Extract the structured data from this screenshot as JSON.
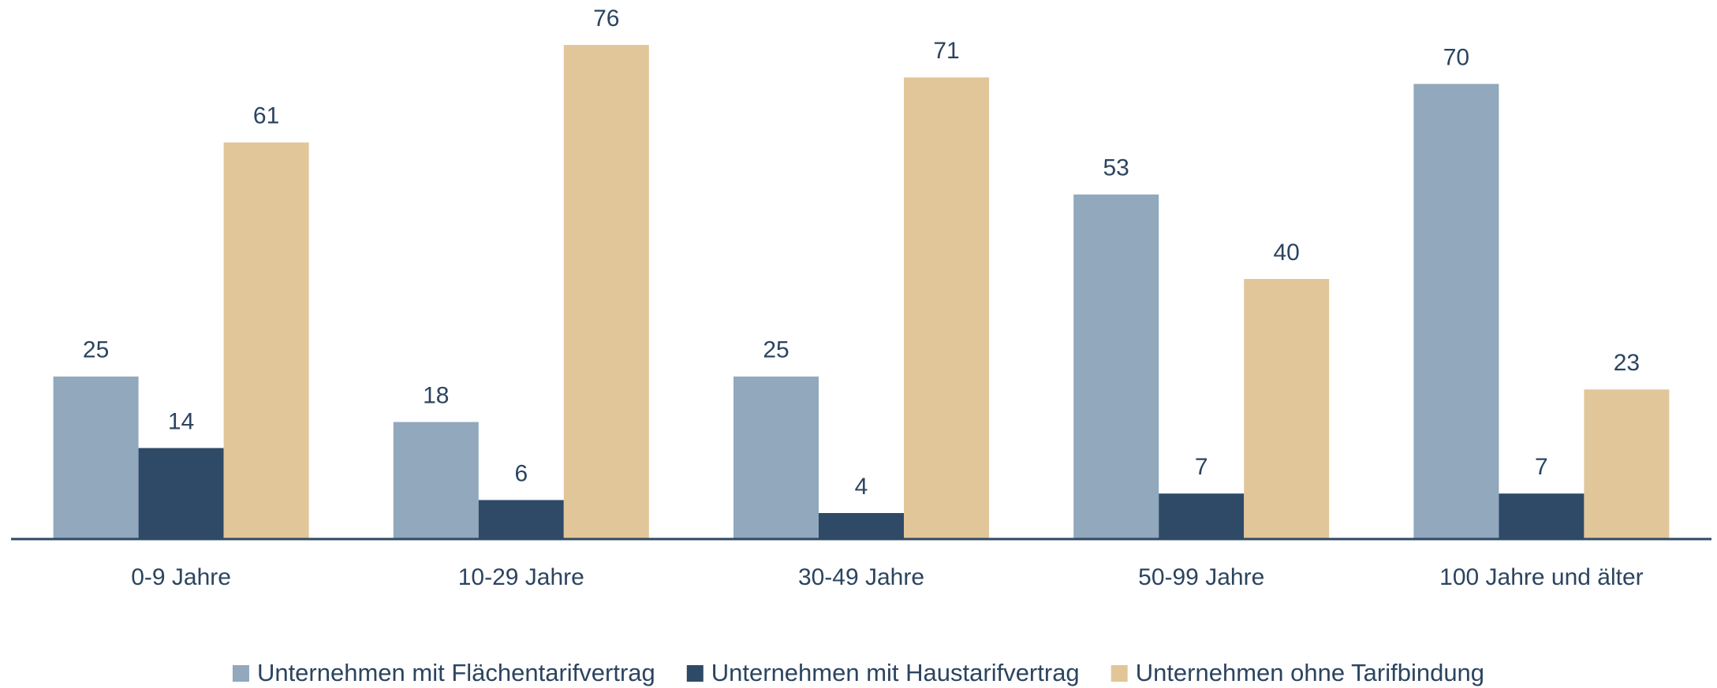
{
  "chart_data": {
    "type": "bar",
    "categories": [
      "0-9 Jahre",
      "10-29 Jahre",
      "30-49 Jahre",
      "50-99 Jahre",
      "100 Jahre und älter"
    ],
    "series": [
      {
        "name": "Unternehmen mit Flächentarifvertrag",
        "color": "#91a8bd",
        "values": [
          25,
          18,
          25,
          53,
          70
        ]
      },
      {
        "name": "Unternehmen mit Haustarifvertrag",
        "color": "#2e4a66",
        "values": [
          14,
          6,
          4,
          7,
          7
        ]
      },
      {
        "name": "Unternehmen ohne Tarifbindung",
        "color": "#e1c699",
        "values": [
          61,
          76,
          71,
          40,
          23
        ]
      }
    ],
    "ylim": [
      0,
      80
    ],
    "grid": false,
    "legend": "bottom"
  }
}
